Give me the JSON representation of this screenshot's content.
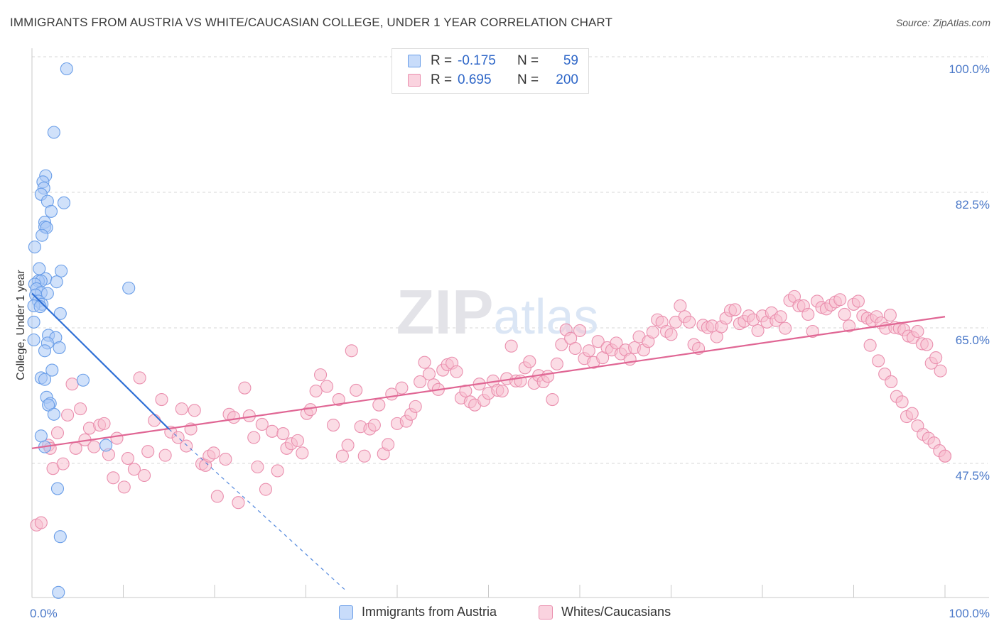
{
  "title": "IMMIGRANTS FROM AUSTRIA VS WHITE/CAUCASIAN COLLEGE, UNDER 1 YEAR CORRELATION CHART",
  "source": "Source: ZipAtlas.com",
  "watermark": "ZIPatlas",
  "colors": {
    "blue_fill": "#a9c8f5",
    "blue_stroke": "#6a9ee8",
    "blue_line": "#2e6fd6",
    "pink_fill": "#f7bfd0",
    "pink_stroke": "#ea8fae",
    "pink_line": "#e06694",
    "axis_label": "#4a78c8",
    "grid": "#d7d7d7"
  },
  "legend": {
    "rows": [
      {
        "series": "blue",
        "r_label": "R =",
        "r_value": "-0.175",
        "n_label": "N =",
        "n_value": "59"
      },
      {
        "series": "pink",
        "r_label": "R =",
        "r_value": "0.695",
        "n_label": "N =",
        "n_value": "200"
      }
    ]
  },
  "bottom_legend": {
    "items": [
      {
        "series": "blue",
        "label": "Immigrants from Austria"
      },
      {
        "series": "pink",
        "label": "Whites/Caucasians"
      }
    ]
  },
  "chart_data": {
    "type": "scatter",
    "xlabel": "",
    "ylabel": "College, Under 1 year",
    "xlim": [
      0,
      100
    ],
    "ylim": [
      32.5,
      102
    ],
    "x_tick_labels": [
      {
        "value": 0,
        "label": "0.0%"
      },
      {
        "value": 100,
        "label": "100.0%"
      }
    ],
    "y_tick_labels": [
      {
        "value": 47.5,
        "label": "47.5%"
      },
      {
        "value": 65.0,
        "label": "65.0%"
      },
      {
        "value": 82.5,
        "label": "82.5%"
      },
      {
        "value": 100.0,
        "label": "100.0%"
      }
    ],
    "y_grid_values": [
      47.5,
      65.0,
      82.5,
      100.0
    ],
    "x_minor_ticks": [
      10,
      20,
      30,
      40,
      50,
      60,
      70,
      80,
      90,
      100
    ],
    "series": [
      {
        "name": "Immigrants from Austria",
        "color_key": "blue",
        "r": -0.175,
        "n": 59,
        "trend": {
          "x": [
            0,
            15
          ],
          "y": [
            71.0,
            53.5
          ],
          "dashed_extension": {
            "x": [
              15,
              34.5
            ],
            "y": [
              53.5,
              32.5
            ]
          }
        },
        "points": [
          [
            3.8,
            100
          ],
          [
            2.4,
            91.8
          ],
          [
            1.5,
            86.2
          ],
          [
            1.2,
            85.4
          ],
          [
            1.3,
            84.6
          ],
          [
            1.0,
            83.8
          ],
          [
            1.7,
            82.9
          ],
          [
            3.5,
            82.7
          ],
          [
            2.1,
            81.6
          ],
          [
            1.4,
            80.2
          ],
          [
            1.4,
            79.6
          ],
          [
            1.6,
            79.5
          ],
          [
            1.1,
            78.5
          ],
          [
            0.3,
            77.0
          ],
          [
            0.8,
            74.2
          ],
          [
            3.2,
            73.9
          ],
          [
            1.5,
            72.9
          ],
          [
            0.7,
            72.6
          ],
          [
            1.0,
            72.6
          ],
          [
            2.7,
            72.5
          ],
          [
            0.3,
            72.2
          ],
          [
            0.5,
            71.6
          ],
          [
            10.6,
            71.7
          ],
          [
            1.0,
            71.1
          ],
          [
            1.7,
            71.0
          ],
          [
            0.4,
            70.8
          ],
          [
            0.7,
            70.0
          ],
          [
            1.1,
            69.6
          ],
          [
            0.2,
            69.4
          ],
          [
            0.9,
            69.3
          ],
          [
            3.1,
            68.4
          ],
          [
            0.2,
            67.3
          ],
          [
            1.8,
            65.6
          ],
          [
            2.6,
            65.3
          ],
          [
            0.2,
            65.0
          ],
          [
            1.7,
            64.6
          ],
          [
            3.0,
            64.0
          ],
          [
            1.4,
            63.6
          ],
          [
            2.2,
            61.1
          ],
          [
            1.0,
            60.1
          ],
          [
            1.4,
            59.9
          ],
          [
            5.6,
            59.8
          ],
          [
            1.6,
            57.6
          ],
          [
            2.0,
            56.8
          ],
          [
            1.8,
            56.6
          ],
          [
            2.4,
            55.4
          ],
          [
            1.0,
            52.6
          ],
          [
            8.1,
            51.4
          ],
          [
            1.4,
            51.2
          ],
          [
            2.8,
            45.8
          ],
          [
            3.1,
            39.6
          ],
          [
            2.9,
            32.4
          ]
        ]
      },
      {
        "name": "Whites/Caucasians",
        "color_key": "pink",
        "r": 0.695,
        "n": 200,
        "trend": {
          "x": [
            0,
            100
          ],
          "y": [
            51.0,
            68.0
          ]
        },
        "points": [
          [
            0.5,
            41.1
          ],
          [
            1.0,
            41.4
          ],
          [
            1.8,
            51.4
          ],
          [
            2.0,
            51.0
          ],
          [
            2.3,
            48.4
          ],
          [
            2.8,
            53.0
          ],
          [
            3.4,
            49.0
          ],
          [
            3.9,
            55.3
          ],
          [
            4.4,
            59.3
          ],
          [
            4.8,
            51.0
          ],
          [
            5.3,
            56.1
          ],
          [
            5.8,
            52.1
          ],
          [
            6.3,
            53.6
          ],
          [
            6.8,
            51.2
          ],
          [
            7.4,
            54.0
          ],
          [
            7.9,
            54.2
          ],
          [
            8.4,
            50.2
          ],
          [
            8.9,
            47.2
          ],
          [
            9.3,
            52.3
          ],
          [
            10.1,
            46.0
          ],
          [
            10.5,
            49.7
          ],
          [
            11.2,
            48.3
          ],
          [
            11.8,
            60.1
          ],
          [
            12.3,
            47.5
          ],
          [
            12.7,
            50.6
          ],
          [
            13.4,
            54.6
          ],
          [
            14.2,
            57.3
          ],
          [
            14.6,
            50.1
          ],
          [
            15.2,
            53.1
          ],
          [
            16.0,
            52.4
          ],
          [
            16.4,
            56.1
          ],
          [
            16.9,
            51.3
          ],
          [
            17.4,
            53.5
          ],
          [
            17.8,
            55.9
          ],
          [
            18.6,
            49.0
          ],
          [
            19.0,
            48.8
          ],
          [
            19.4,
            50.0
          ],
          [
            19.9,
            50.4
          ],
          [
            20.3,
            44.8
          ],
          [
            21.2,
            49.6
          ],
          [
            21.6,
            55.4
          ],
          [
            22.1,
            55.0
          ],
          [
            22.6,
            44.0
          ],
          [
            23.3,
            58.8
          ],
          [
            23.8,
            55.2
          ],
          [
            24.3,
            52.4
          ],
          [
            24.7,
            48.6
          ],
          [
            25.2,
            54.1
          ],
          [
            25.6,
            45.7
          ],
          [
            26.3,
            53.2
          ],
          [
            26.9,
            48.1
          ],
          [
            27.5,
            52.9
          ],
          [
            27.9,
            51.0
          ],
          [
            28.4,
            51.6
          ],
          [
            29.1,
            52.0
          ],
          [
            29.6,
            50.4
          ],
          [
            30.1,
            55.5
          ],
          [
            30.5,
            56.0
          ],
          [
            31.1,
            58.4
          ],
          [
            31.6,
            60.5
          ],
          [
            32.3,
            59.0
          ],
          [
            33.0,
            54.0
          ],
          [
            33.6,
            57.3
          ],
          [
            34.0,
            50.0
          ],
          [
            34.6,
            51.4
          ],
          [
            35.0,
            63.6
          ],
          [
            35.5,
            58.5
          ],
          [
            36.0,
            53.8
          ],
          [
            36.4,
            50.0
          ],
          [
            37.0,
            53.5
          ],
          [
            37.5,
            54.0
          ],
          [
            38.0,
            56.6
          ],
          [
            38.5,
            50.3
          ],
          [
            39.0,
            51.5
          ],
          [
            39.4,
            58.0
          ],
          [
            40.0,
            54.2
          ],
          [
            40.5,
            58.8
          ],
          [
            41.0,
            54.5
          ],
          [
            41.5,
            55.4
          ],
          [
            42.0,
            56.4
          ],
          [
            42.5,
            59.6
          ],
          [
            43.0,
            62.1
          ],
          [
            43.5,
            60.6
          ],
          [
            44.0,
            59.2
          ],
          [
            44.5,
            58.6
          ],
          [
            45.0,
            61.1
          ],
          [
            45.5,
            61.8
          ],
          [
            46.0,
            62.0
          ],
          [
            46.5,
            60.9
          ],
          [
            47.0,
            57.5
          ],
          [
            47.5,
            58.4
          ],
          [
            48.0,
            57.0
          ],
          [
            48.5,
            56.6
          ],
          [
            49.0,
            59.3
          ],
          [
            49.5,
            57.2
          ],
          [
            50.0,
            58.1
          ],
          [
            50.5,
            59.7
          ],
          [
            51.0,
            58.5
          ],
          [
            51.5,
            58.4
          ],
          [
            52.0,
            60.0
          ],
          [
            52.5,
            64.2
          ],
          [
            53.0,
            59.7
          ],
          [
            53.5,
            59.7
          ],
          [
            54.0,
            61.4
          ],
          [
            54.5,
            62.2
          ],
          [
            55.0,
            59.4
          ],
          [
            55.5,
            60.4
          ],
          [
            56.0,
            59.6
          ],
          [
            56.5,
            60.3
          ],
          [
            57.0,
            57.3
          ],
          [
            57.5,
            61.9
          ],
          [
            58.0,
            64.4
          ],
          [
            58.5,
            66.3
          ],
          [
            59.0,
            65.2
          ],
          [
            59.5,
            63.9
          ],
          [
            60.0,
            66.2
          ],
          [
            60.5,
            62.6
          ],
          [
            61.0,
            63.6
          ],
          [
            61.5,
            62.1
          ],
          [
            62.0,
            64.8
          ],
          [
            62.5,
            62.7
          ],
          [
            63.0,
            64.0
          ],
          [
            63.5,
            63.7
          ],
          [
            64.0,
            64.6
          ],
          [
            64.5,
            63.2
          ],
          [
            65.0,
            63.7
          ],
          [
            65.5,
            62.5
          ],
          [
            66.0,
            64.0
          ],
          [
            66.5,
            65.4
          ],
          [
            67.0,
            63.7
          ],
          [
            67.5,
            64.8
          ],
          [
            68.0,
            66.0
          ],
          [
            68.5,
            67.6
          ],
          [
            69.0,
            67.3
          ],
          [
            69.5,
            66.1
          ],
          [
            70.0,
            65.7
          ],
          [
            70.5,
            67.3
          ],
          [
            71.0,
            69.4
          ],
          [
            71.5,
            68.0
          ],
          [
            72.0,
            67.3
          ],
          [
            72.5,
            64.4
          ],
          [
            73.0,
            63.9
          ],
          [
            73.5,
            66.9
          ],
          [
            74.0,
            66.6
          ],
          [
            74.5,
            66.8
          ],
          [
            75.0,
            65.4
          ],
          [
            75.5,
            66.7
          ],
          [
            76.0,
            67.8
          ],
          [
            76.5,
            68.8
          ],
          [
            77.0,
            68.9
          ],
          [
            77.5,
            67.1
          ],
          [
            78.0,
            67.4
          ],
          [
            78.5,
            68.1
          ],
          [
            79.0,
            67.6
          ],
          [
            79.5,
            66.2
          ],
          [
            80.0,
            68.1
          ],
          [
            80.5,
            67.3
          ],
          [
            81.0,
            68.5
          ],
          [
            81.5,
            67.5
          ],
          [
            82.0,
            68.0
          ],
          [
            82.5,
            66.5
          ],
          [
            83.0,
            70.1
          ],
          [
            83.5,
            70.6
          ],
          [
            84.0,
            69.4
          ],
          [
            84.5,
            69.4
          ],
          [
            85.0,
            68.3
          ],
          [
            85.5,
            66.1
          ],
          [
            86.0,
            70.0
          ],
          [
            86.5,
            69.2
          ],
          [
            87.0,
            69.0
          ],
          [
            87.5,
            69.5
          ],
          [
            88.0,
            69.9
          ],
          [
            88.5,
            70.2
          ],
          [
            89.0,
            68.3
          ],
          [
            89.5,
            66.8
          ],
          [
            90.0,
            69.6
          ],
          [
            90.5,
            70.0
          ],
          [
            91.0,
            68.1
          ],
          [
            91.5,
            67.8
          ],
          [
            92.0,
            67.5
          ],
          [
            92.5,
            68.0
          ],
          [
            93.0,
            67.2
          ],
          [
            93.5,
            66.5
          ],
          [
            94.0,
            68.2
          ],
          [
            94.5,
            66.6
          ],
          [
            95.0,
            66.5
          ],
          [
            95.5,
            66.3
          ],
          [
            96.0,
            65.5
          ],
          [
            96.5,
            65.3
          ],
          [
            97.0,
            66.1
          ],
          [
            97.5,
            64.5
          ],
          [
            98.0,
            64.4
          ],
          [
            98.5,
            62.0
          ],
          [
            99.0,
            62.7
          ],
          [
            99.5,
            61.0
          ],
          [
            100.0,
            50.0
          ]
        ]
      }
    ]
  },
  "extra_pink_tail": [
    [
      91.8,
      64.3
    ],
    [
      92.7,
      62.3
    ],
    [
      93.4,
      60.6
    ],
    [
      94.1,
      59.6
    ],
    [
      94.7,
      57.7
    ],
    [
      95.3,
      57.0
    ],
    [
      95.8,
      55.1
    ],
    [
      96.4,
      55.5
    ],
    [
      97.0,
      53.9
    ],
    [
      97.6,
      52.8
    ],
    [
      98.2,
      52.3
    ],
    [
      98.8,
      51.7
    ],
    [
      99.4,
      50.7
    ],
    [
      100.0,
      50.0
    ]
  ]
}
